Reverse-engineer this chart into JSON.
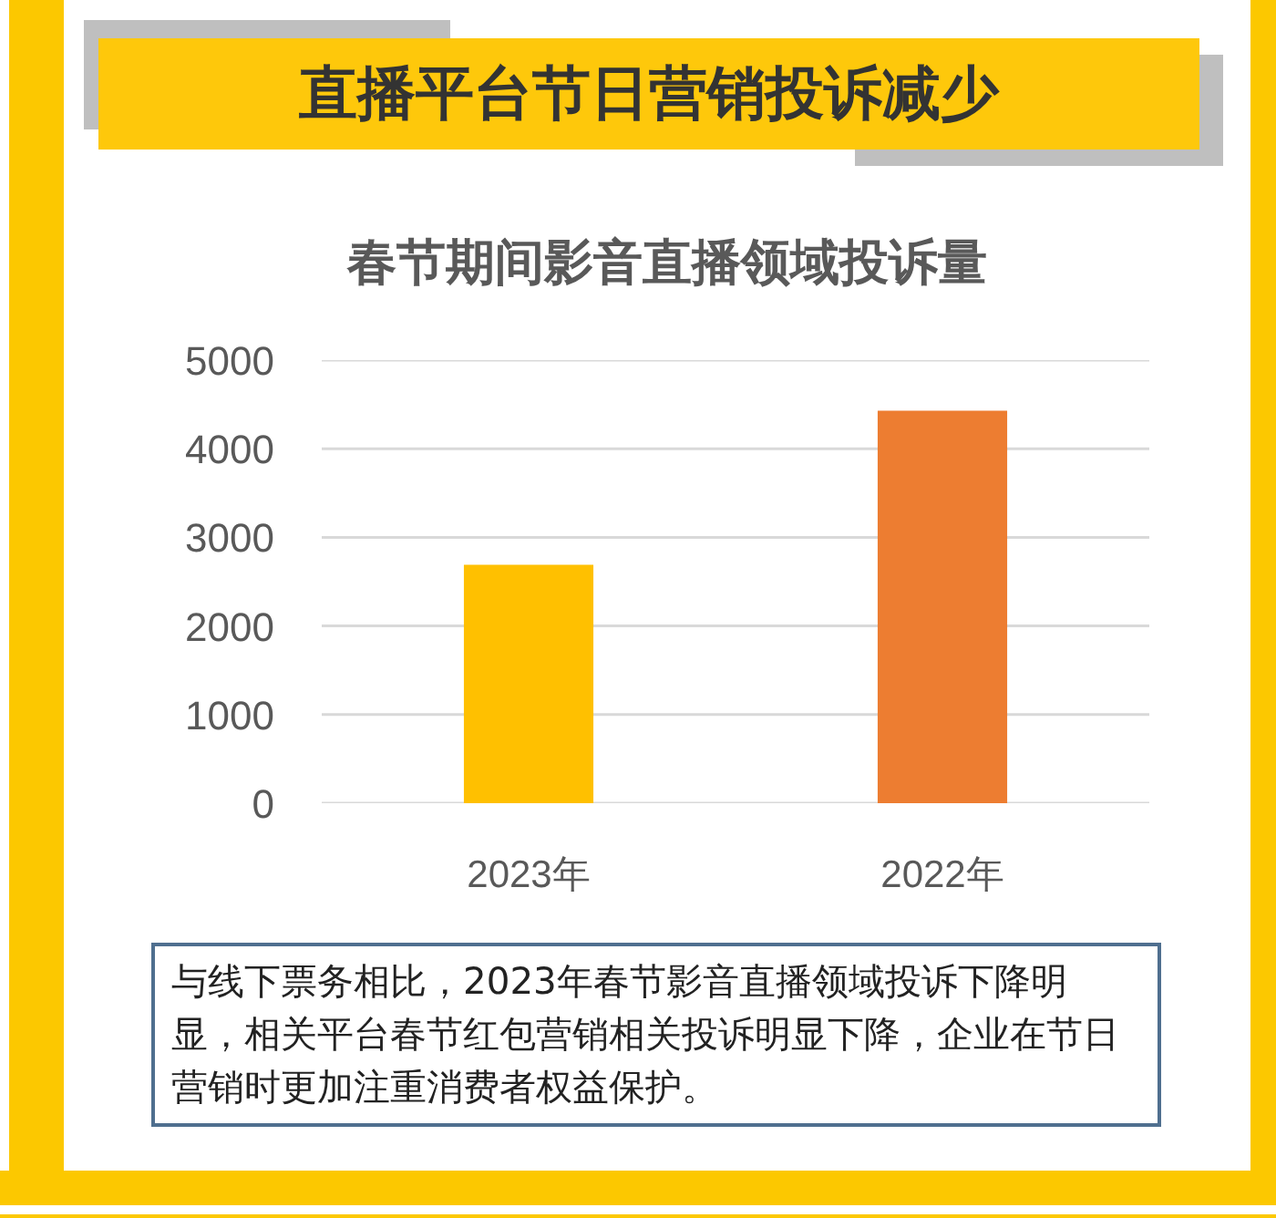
{
  "chart_data": {
    "type": "bar",
    "title": "直播平台节日营销投诉减少",
    "subtitle": "春节期间影音直播领域投诉量",
    "categories": [
      "2023年",
      "2022年"
    ],
    "values": [
      2690,
      4430
    ],
    "colors": [
      "#ffc000",
      "#ed7d31"
    ],
    "ylim": [
      0,
      5000
    ],
    "yticks": [
      0,
      1000,
      2000,
      3000,
      4000,
      5000
    ],
    "grid": "y",
    "annotations": [
      "与线下票务相比，2023年春节影音直播领域投诉下降明显，相关平台春节红包营销相关投诉明显下降，企业在节日营销时更加注重消费者权益保护。"
    ]
  }
}
